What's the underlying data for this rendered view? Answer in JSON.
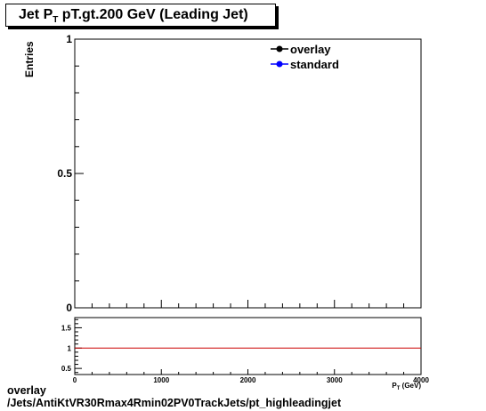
{
  "title": {
    "main": "Jet P",
    "sub": "T",
    "rest": " pT.gt.200 GeV (Leading Jet)"
  },
  "chart_data": [
    {
      "type": "line",
      "ylabel": "Entries",
      "ylim": [
        0,
        1
      ],
      "yticks": [
        "0",
        "0.5",
        "1"
      ],
      "series": [
        {
          "name": "overlay",
          "color": "#000000",
          "values": []
        },
        {
          "name": "standard",
          "color": "#0000ff",
          "values": []
        }
      ],
      "legend": "top-right"
    },
    {
      "type": "line",
      "xlim": [
        0,
        4000
      ],
      "ylim": [
        0.35,
        1.75
      ],
      "xticks": [
        "0",
        "1000",
        "2000",
        "3000",
        "4000"
      ],
      "yticks": [
        "0.5",
        "1",
        "1.5"
      ],
      "xlabel": "P_{T} (GeV)",
      "reference_line": {
        "y": 1,
        "color": "#cc0000"
      }
    }
  ],
  "footer": {
    "line1": "overlay",
    "line2": "/Jets/AntiKtVR30Rmax4Rmin02PV0TrackJets/pt_highleadingjet"
  }
}
